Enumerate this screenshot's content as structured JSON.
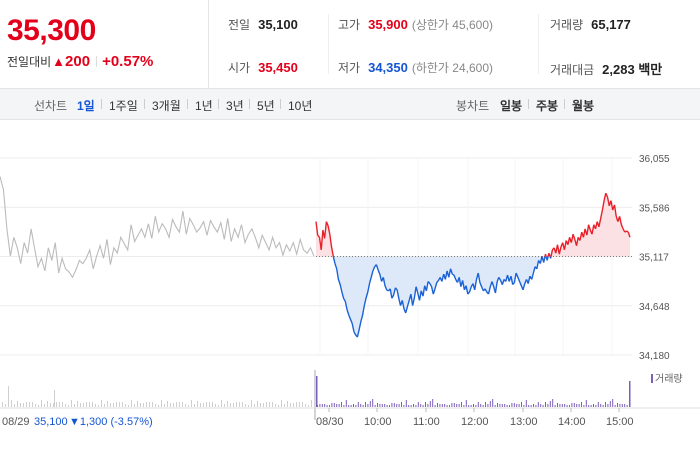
{
  "stock": {
    "price": "35,300",
    "change_label": "전일대비",
    "change_symbol": "▲",
    "change_value": "200",
    "change_pct": "+0.57%"
  },
  "stats": {
    "prev_close_label": "전일",
    "prev_close": "35,100",
    "high_label": "고가",
    "high": "35,900",
    "upper_limit": "(상한가 45,600)",
    "volume_label": "거래량",
    "volume": "65,177",
    "open_label": "시가",
    "open": "35,450",
    "low_label": "저가",
    "low": "34,350",
    "lower_limit": "(하한가 24,600)",
    "amount_label": "거래대금",
    "amount": "2,283 백만"
  },
  "tabs": {
    "line_label": "선차트",
    "line_periods": [
      "1일",
      "1주일",
      "3개월",
      "1년",
      "3년",
      "5년",
      "10년"
    ],
    "line_active": "1일",
    "candle_label": "봉차트",
    "candle_periods": [
      "일봉",
      "주봉",
      "월봉"
    ]
  },
  "chart_data": {
    "type": "line",
    "y_ticks": [
      "36,055",
      "35,586",
      "35,117",
      "34,648",
      "34,180"
    ],
    "ylim": [
      34180,
      36055
    ],
    "reference_price": 35117,
    "x_ticks": [
      "08/29",
      "08/30",
      "10:00",
      "11:00",
      "12:00",
      "13:00",
      "14:00",
      "15:00"
    ],
    "prev_day_label": "08/29",
    "prev_day_close": "35,100",
    "prev_day_change": "▼1,300 (-3.57%)",
    "volume_legend": "거래량",
    "colors": {
      "up": "#e8202a",
      "down": "#1a62d6",
      "prev": "#bbbbbb",
      "up_fill": "#fbe1e3",
      "down_fill": "#dde9f8",
      "volume": "#7b5fb8"
    },
    "prev_day_series": [
      35880,
      35750,
      35380,
      35120,
      35300,
      35200,
      35050,
      35250,
      35150,
      35380,
      35200,
      35020,
      35100,
      34980,
      35200,
      35080,
      35250,
      34960,
      35100,
      35000,
      34970,
      34920,
      34990,
      35080,
      35050,
      35100,
      35180,
      35000,
      35120,
      35220,
      35100,
      35280,
      35040,
      35200,
      35150,
      35300,
      35240,
      35180,
      35420,
      35260,
      35320,
      35380,
      35300,
      35430,
      35290,
      35500,
      35350,
      35430,
      35380,
      35300,
      35470,
      35400,
      35350,
      35550,
      35330,
      35480,
      35420,
      35350,
      35390,
      35450,
      35320,
      35460,
      35400,
      35350,
      35440,
      35280,
      35480,
      35260,
      35380,
      35300,
      35420,
      35250,
      35330,
      35380,
      35300,
      35200,
      35320,
      35250,
      35180,
      35300,
      35200,
      35250,
      35130,
      35230,
      35170,
      35250,
      35140,
      35280,
      35180,
      35150,
      35200,
      35120
    ],
    "today_series": [
      35450,
      35320,
      35300,
      35180,
      35370,
      35290,
      35450,
      35410,
      35330,
      35210,
      35120,
      35050,
      35000,
      34900,
      34850,
      34780,
      34720,
      34690,
      34610,
      34560,
      34520,
      34480,
      34400,
      34370,
      34350,
      34420,
      34500,
      34560,
      34650,
      34720,
      34780,
      34860,
      34920,
      34980,
      35020,
      35040,
      34990,
      34950,
      34880,
      34920,
      34840,
      34800,
      34790,
      34810,
      34720,
      34750,
      34820,
      34800,
      34720,
      34650,
      34700,
      34620,
      34580,
      34640,
      34700,
      34760,
      34650,
      34720,
      34830,
      34770,
      34700,
      34790,
      34740,
      34840,
      34790,
      34880,
      34860,
      34830,
      34760,
      34810,
      34870,
      34890,
      34920,
      34880,
      34950,
      34900,
      34980,
      34920,
      35000,
      34950,
      34940,
      34900,
      34870,
      34920,
      34830,
      34890,
      34800,
      34840,
      34760,
      34780,
      34830,
      34860,
      34800,
      34900,
      34960,
      34870,
      34830,
      34790,
      34810,
      34780,
      34760,
      34830,
      34880,
      34830,
      34770,
      34880,
      34920,
      34890,
      34850,
      34900,
      34880,
      34940,
      34880,
      34930,
      34850,
      34870,
      34960,
      34920,
      34880,
      34840,
      34800,
      34860,
      34900,
      34860,
      34930,
      34900,
      34960,
      35020,
      35000,
      35080,
      35050,
      35120,
      35060,
      35140,
      35080,
      35150,
      35100,
      35180,
      35200,
      35150,
      35230,
      35140,
      35210,
      35250,
      35180,
      35270,
      35230,
      35300,
      35250,
      35330,
      35280,
      35220,
      35300,
      35270,
      35350,
      35300,
      35380,
      35320,
      35420,
      35370,
      35330,
      35420,
      35380,
      35450,
      35400,
      35480,
      35560,
      35650,
      35720,
      35680,
      35600,
      35650,
      35560,
      35610,
      35500,
      35450,
      35500,
      35420,
      35380,
      35350,
      35360,
      35350,
      35300
    ]
  }
}
